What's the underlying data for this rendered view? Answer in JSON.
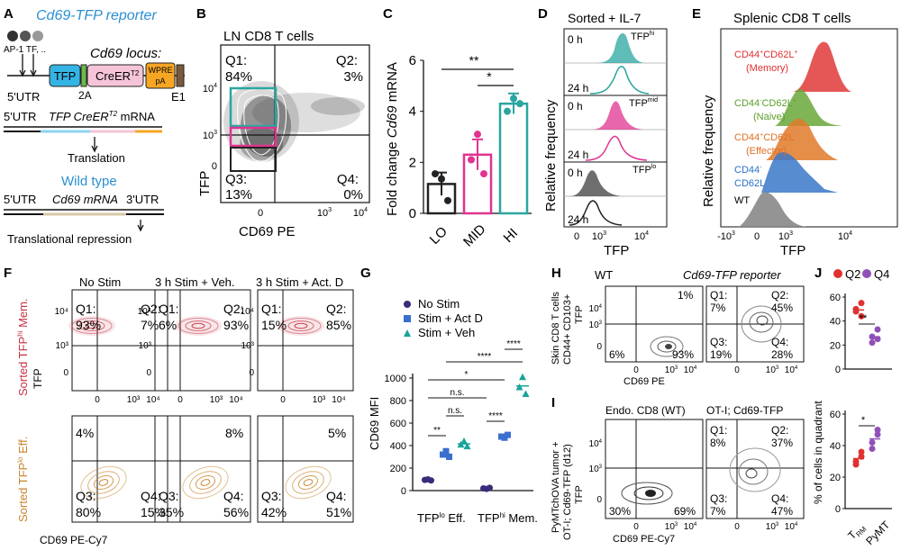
{
  "colors": {
    "teal": "#2aa6a0",
    "pink": "#e0338f",
    "black": "#222222",
    "blue_text": "#2b8fd0",
    "red": "#e03a3a",
    "green": "#69a83a",
    "orange": "#e07a2a",
    "blue": "#3a78c8",
    "gray": "#888888",
    "dark_purple": "#3a2b7a",
    "mid_blue": "#3a6fd0",
    "teal_tri": "#19a39a",
    "red_q2": "#e03030",
    "purple_q4": "#9050b8",
    "sorted_red": "#c83040",
    "sorted_orange": "#c8842a",
    "cd62l_red": "#e03030",
    "naive_green": "#5aa02a",
    "eff_orange": "#e07020",
    "cd44_blue": "#2a6fc8"
  },
  "panels": {
    "A": {
      "letter": "A",
      "title": "Cd69-TFP reporter",
      "dots_label": "AP-1 TF, ..",
      "locus_label": "Cd69 locus:",
      "box_tfp": "TFP",
      "box_creer": "CreER",
      "box_creer_sup": "T2",
      "box_wpre": "WPRE",
      "box_pa": "pA",
      "label_5utr": "5'UTR",
      "label_2a": "2A",
      "label_e1": "E1",
      "mrna_label": "TFP CreER",
      "mrna_sup": "T2",
      "mrna_suffix": " mRNA",
      "mrna_5utr": "5'UTR",
      "translation": "Translation",
      "wt_title": "Wild type",
      "wt_5utr": "5'UTR",
      "wt_mrna": "Cd69 mRNA",
      "wt_3utr": "3'UTR",
      "repression": "Translational repression"
    },
    "B": {
      "letter": "B",
      "title": "LN CD8 T cells",
      "q1": "Q1:",
      "q1v": "84%",
      "q2": "Q2:",
      "q2v": "3%",
      "q3": "Q3:",
      "q3v": "13%",
      "q4": "Q4:",
      "q4v": "0%",
      "y104": "10",
      "y104e": "4",
      "y103": "10",
      "y103e": "3",
      "y0": "0",
      "x0": "0",
      "x103": "10",
      "x103e": "3",
      "x104": "10",
      "x104e": "4",
      "ylabel": "TFP",
      "xlabel": "CD69 PE"
    },
    "C": {
      "letter": "C",
      "ylabel_pre": "Fold change ",
      "ylabel_it": "Cd69",
      "ylabel_post": " mRNA",
      "sig1": "**",
      "sig2": "*"
    },
    "D": {
      "letter": "D",
      "title": "Sorted + IL-7",
      "t0": "0 h",
      "t24": "24 h",
      "hi": "TFP",
      "hi_sup": "hi",
      "mid": "TFP",
      "mid_sup": "mid",
      "lo": "TFP",
      "lo_sup": "lo",
      "ylabel": "Relative frequency",
      "xlabel": "TFP",
      "x0": "0",
      "x103": "10",
      "x103e": "3",
      "x104": "10",
      "x104e": "4"
    },
    "E": {
      "letter": "E",
      "title": "Splenic CD8 T cells",
      "mem1": "CD44",
      "mem1s": "+",
      "mem2": "CD62L",
      "mem2s": "+",
      "mem3": "(Memory)",
      "nai1": "CD44",
      "nai1s": "-",
      "nai2": "CD62L",
      "nai2s": "+",
      "nai3": "(Naive)",
      "eff1": "CD44",
      "eff1s": "+",
      "eff2": "CD62L",
      "eff2s": "-",
      "eff3": "(Effector)",
      "dn1": "CD44",
      "dn1s": "-",
      "dn2": "CD62L",
      "dn2s": "-",
      "wt": "WT",
      "ylabel": "Relative frequency",
      "xlabel": "TFP",
      "xm103": "-10",
      "xm103e": "3",
      "x0": "0",
      "x103": "10",
      "x103e": "3",
      "x104": "10",
      "x104e": "4"
    },
    "F": {
      "letter": "F",
      "col1": "No Stim",
      "col2": "3 h Stim + Veh.",
      "col3": "3 h Stim + Act. D",
      "row1_pre": "Sorted TFP",
      "row1_sup": "hi",
      "row1_post": " Mem.",
      "row2_pre": "Sorted TFP",
      "row2_sup": "lo",
      "row2_post": " Eff.",
      "top": [
        {
          "q1": "Q1:",
          "q1v": "93%",
          "q2": "Q2:",
          "q2v": "7%"
        },
        {
          "q1": "Q1:",
          "q1v": "6%",
          "q2": "Q2:",
          "q2v": "93%"
        },
        {
          "q1": "Q1:",
          "q1v": "15%",
          "q2": "Q2:",
          "q2v": "85%"
        }
      ],
      "bottom": [
        {
          "tl": "4%",
          "q3": "Q3:",
          "q3v": "80%",
          "q4": "Q4:",
          "q4v": "15%"
        },
        {
          "tr": "8%",
          "q3": "Q3:",
          "q3v": "35%",
          "q4": "Q4:",
          "q4v": "56%"
        },
        {
          "tr": "5%",
          "q3": "Q3:",
          "q3v": "42%",
          "q4": "Q4:",
          "q4v": "51%"
        }
      ],
      "y104": "10",
      "y104e": "4",
      "y103": "10",
      "y103e": "3",
      "y0": "0",
      "x0": "0",
      "x103": "10",
      "x103e": "3",
      "x104": "10",
      "x104e": "4",
      "ylabel": "TFP",
      "xlabel": "CD69 PE-Cy7"
    },
    "G": {
      "letter": "G",
      "legend": [
        "No Stim",
        "Stim + Act D",
        "Stim + Veh"
      ],
      "ylabel": "CD69 MFI",
      "xl1": "TFP",
      "xl1s": "lo",
      "xl1p": " Eff.",
      "xl2": "TFP",
      "xl2s": "hi",
      "xl2p": " Mem.",
      "sig": [
        "**",
        "n.s.",
        "n.s.",
        "*",
        "****",
        "****",
        "****"
      ]
    },
    "H": {
      "letter": "H",
      "wt": "WT",
      "reporter": "Cd69-TFP reporter",
      "ylabel1": "Skin CD8 T cells",
      "ylabel2": "CD44+ CD103+",
      "ylabel3": "TFP",
      "wt_tr": "1%",
      "wt_bl": "6%",
      "wt_br": "93%",
      "r_q1": "Q1:",
      "r_q1v": "7%",
      "r_q2": "Q2:",
      "r_q2v": "45%",
      "r_q3": "Q3:",
      "r_q3v": "19%",
      "r_q4": "Q4:",
      "r_q4v": "28%",
      "xlabel": "CD69 PE",
      "x0": "0",
      "x103": "10",
      "x103e": "3",
      "x104": "10",
      "x104e": "4",
      "y104": "10",
      "y104e": "4",
      "y103": "10",
      "y103e": "3",
      "y0": "0"
    },
    "I": {
      "letter": "I",
      "wt": "Endo. CD8 (WT)",
      "otI": "OT-I; Cd69-TFP",
      "ylabel1": "PyMTchOVA tumor +",
      "ylabel2": "OT-I; Cd69-TFP (d12)",
      "ylabel3": "TFP",
      "wt_bl": "30%",
      "wt_br": "69%",
      "r_q1": "Q1:",
      "r_q1v": "8%",
      "r_q2": "Q2:",
      "r_q2v": "37%",
      "r_q3": "Q3:",
      "r_q3v": "7%",
      "r_q4": "Q4:",
      "r_q4v": "47%",
      "xlabel": "CD69 PE-Cy7",
      "x0": "0",
      "x103": "10",
      "x103e": "3",
      "x104": "10",
      "x104e": "4",
      "y104": "10",
      "y104e": "4",
      "y103": "10",
      "y103e": "3",
      "y0": "0"
    },
    "J": {
      "letter": "J",
      "legend_q2": "Q2",
      "legend_q4": "Q4",
      "ylabel": "% of cells in quadrant",
      "sig_top": "**",
      "sig_bot": "*",
      "xl1": "T",
      "xl1s": "RM",
      "xl2": "PyMT"
    }
  },
  "chart_data": [
    {
      "id": "C",
      "type": "bar",
      "categories": [
        "LO",
        "MID",
        "HI"
      ],
      "values": [
        1.15,
        2.3,
        4.3
      ],
      "errors": [
        0.45,
        0.6,
        0.4
      ],
      "points": [
        [
          1.55,
          1.35,
          0.5
        ],
        [
          2.1,
          3.1,
          1.55
        ],
        [
          4.0,
          4.5,
          4.3
        ]
      ],
      "ylabel": "Fold change Cd69 mRNA",
      "ylim": [
        0,
        6
      ],
      "yticks": [
        0,
        2,
        4,
        6
      ]
    },
    {
      "id": "G",
      "type": "scatter",
      "groups": [
        "TFPlo Eff.",
        "TFPhi Mem."
      ],
      "series": [
        {
          "name": "No Stim",
          "values": [
            [
              95,
              100,
              90
            ],
            [
              20,
              15,
              25
            ]
          ]
        },
        {
          "name": "Stim + Act D",
          "values": [
            [
              320,
              350,
              300
            ],
            [
              480,
              470,
              495
            ]
          ]
        },
        {
          "name": "Stim + Veh",
          "values": [
            [
              410,
              440,
              395
            ],
            [
              920,
              1010,
              860
            ]
          ]
        }
      ],
      "ylabel": "CD69 MFI",
      "ylim": [
        0,
        1000
      ],
      "yticks": [
        0,
        200,
        400,
        600,
        800,
        1000
      ]
    },
    {
      "id": "J-top",
      "type": "scatter",
      "categories": [
        "Q2",
        "Q4"
      ],
      "series": [
        {
          "name": "Q2",
          "values": [
            48,
            55,
            50,
            44
          ]
        },
        {
          "name": "Q4",
          "values": [
            27,
            33,
            22,
            25
          ]
        }
      ],
      "ylim": [
        0,
        60
      ],
      "yticks": [
        0,
        20,
        40,
        60
      ]
    },
    {
      "id": "J-bottom",
      "type": "scatter",
      "categories": [
        "TRM",
        "PyMT"
      ],
      "series": [
        {
          "name": "Q2",
          "values": [
            30,
            36,
            28,
            33
          ]
        },
        {
          "name": "Q4",
          "values": [
            42,
            50,
            38,
            47
          ]
        }
      ],
      "ylim": [
        0,
        60
      ],
      "yticks": [
        0,
        20,
        40,
        60
      ]
    }
  ]
}
